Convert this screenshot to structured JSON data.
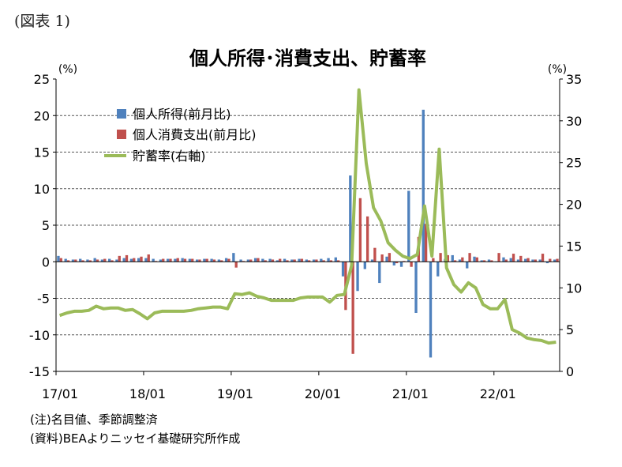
{
  "figure_label": "(図表 1)",
  "notes": {
    "note": "(注)名目値、季節調整済",
    "source": "(資料)BEAよりニッセイ基礎研究所作成"
  },
  "colors": {
    "income": "#4F81BD",
    "spending": "#C0504D",
    "saving": "#9BBB59"
  },
  "chart_data": {
    "type": "bar",
    "title": "個人所得･消費支出、貯蓄率",
    "left_axis": {
      "unit": "(%)",
      "min": -15,
      "max": 25,
      "ticks": [
        25,
        20,
        15,
        10,
        5,
        0,
        -5,
        -10,
        -15
      ]
    },
    "right_axis": {
      "unit": "(%)",
      "min": 0,
      "max": 35,
      "ticks": [
        35,
        30,
        25,
        20,
        15,
        10,
        5,
        0
      ]
    },
    "x_tick_labels": [
      "17/01",
      "18/01",
      "19/01",
      "20/01",
      "21/01",
      "22/01"
    ],
    "grid": "horizontal-dashed",
    "legend_position": "top-left",
    "series": [
      {
        "name": "個人所得(前月比)",
        "type": "bar",
        "axis": "left",
        "values": [
          0.8,
          0.4,
          0.3,
          0.4,
          0.3,
          0.5,
          0.3,
          0.4,
          0.3,
          0.5,
          0.4,
          0.5,
          0.5,
          0.4,
          0.3,
          0.4,
          0.4,
          0.5,
          0.4,
          0.3,
          0.4,
          0.4,
          0.3,
          0.5,
          1.2,
          0.3,
          0.3,
          0.5,
          0.4,
          0.4,
          0.2,
          0.4,
          0.3,
          0.4,
          0.3,
          0.3,
          0.4,
          0.5,
          0.6,
          -2.0,
          11.8,
          -4.0,
          -1.0,
          0.3,
          -2.9,
          0.7,
          -0.5,
          -0.7,
          9.7,
          -7.0,
          20.8,
          -13.1,
          -2.0,
          0.4,
          0.9,
          0.3,
          -0.9,
          0.7,
          0.2,
          0.3,
          0.0,
          0.6,
          0.5,
          0.3,
          0.4,
          0.3,
          0.3,
          -0.2,
          0.3
        ]
      },
      {
        "name": "個人消費支出(前月比)",
        "type": "bar",
        "axis": "left",
        "values": [
          0.5,
          0.2,
          0.3,
          0.2,
          0.2,
          0.3,
          0.4,
          0.2,
          0.8,
          0.9,
          0.5,
          0.7,
          1.0,
          0.1,
          0.4,
          0.4,
          0.5,
          0.4,
          0.4,
          0.3,
          0.4,
          0.3,
          0.2,
          0.4,
          -0.8,
          0.1,
          0.3,
          0.5,
          0.2,
          0.3,
          0.4,
          0.2,
          0.3,
          0.4,
          0.2,
          0.3,
          0.2,
          0.2,
          0.2,
          -6.6,
          -12.6,
          8.7,
          6.2,
          1.9,
          1.0,
          1.2,
          -0.2,
          0.1,
          -0.7,
          3.4,
          5.2,
          0.5,
          1.2,
          0.9,
          0.2,
          0.6,
          1.2,
          0.6,
          0.2,
          0.2,
          1.2,
          0.3,
          1.1,
          0.8,
          0.5,
          0.3,
          1.1,
          0.4,
          0.4
        ]
      },
      {
        "name": "貯蓄率(右軸)",
        "type": "line",
        "axis": "right",
        "values": [
          6.7,
          7.0,
          7.2,
          7.2,
          7.3,
          7.8,
          7.5,
          7.6,
          7.6,
          7.3,
          7.4,
          6.9,
          6.3,
          7.0,
          7.2,
          7.2,
          7.2,
          7.2,
          7.3,
          7.5,
          7.6,
          7.7,
          7.7,
          7.5,
          9.3,
          9.2,
          9.4,
          9.0,
          8.8,
          8.5,
          8.5,
          8.5,
          8.5,
          8.8,
          8.9,
          8.9,
          8.9,
          8.3,
          9.1,
          9.2,
          12.7,
          33.7,
          24.9,
          19.6,
          18.0,
          15.4,
          14.5,
          13.8,
          13.5,
          14.0,
          19.8,
          13.8,
          26.6,
          12.4,
          10.4,
          9.5,
          10.6,
          10.0,
          8.0,
          7.5,
          7.5,
          8.6,
          5.0,
          4.6,
          4.0,
          3.8,
          3.7,
          3.4,
          3.5
        ]
      }
    ]
  }
}
